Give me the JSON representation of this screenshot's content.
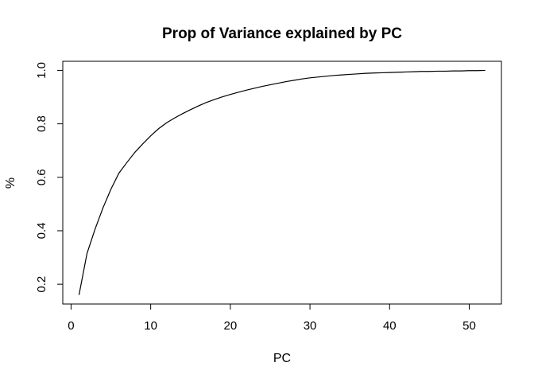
{
  "chart_data": {
    "type": "line",
    "title": "Prop of Variance explained by PC",
    "xlabel": "PC",
    "ylabel": "%",
    "xlim": [
      -1.04,
      54.04
    ],
    "ylim": [
      0.126,
      1.034
    ],
    "x_ticks": [
      0,
      10,
      20,
      30,
      40,
      50
    ],
    "y_ticks": [
      0.2,
      0.4,
      0.6,
      0.8,
      1.0
    ],
    "y_tick_labels": [
      "0.2",
      "0.4",
      "0.6",
      "0.8",
      "1.0"
    ],
    "grid": false,
    "legend": "none",
    "line_color": "#000000",
    "series": [
      {
        "x": [
          1,
          2,
          3,
          4,
          5,
          6,
          7,
          8,
          9,
          10,
          11,
          12,
          13,
          14,
          15,
          16,
          17,
          18,
          19,
          20,
          21,
          22,
          23,
          24,
          25,
          26,
          27,
          28,
          29,
          30,
          31,
          32,
          33,
          34,
          35,
          36,
          37,
          38,
          39,
          40,
          41,
          42,
          43,
          44,
          45,
          46,
          47,
          48,
          49,
          50,
          51,
          52
        ],
        "values": [
          0.16,
          0.315,
          0.405,
          0.485,
          0.555,
          0.615,
          0.655,
          0.693,
          0.725,
          0.755,
          0.782,
          0.804,
          0.822,
          0.838,
          0.853,
          0.867,
          0.88,
          0.891,
          0.901,
          0.91,
          0.918,
          0.926,
          0.933,
          0.94,
          0.946,
          0.952,
          0.958,
          0.963,
          0.968,
          0.972,
          0.975,
          0.978,
          0.981,
          0.983,
          0.985,
          0.987,
          0.989,
          0.99,
          0.991,
          0.992,
          0.993,
          0.994,
          0.995,
          0.996,
          0.996,
          0.997,
          0.997,
          0.998,
          0.998,
          0.999,
          0.999,
          1.0
        ]
      }
    ]
  }
}
